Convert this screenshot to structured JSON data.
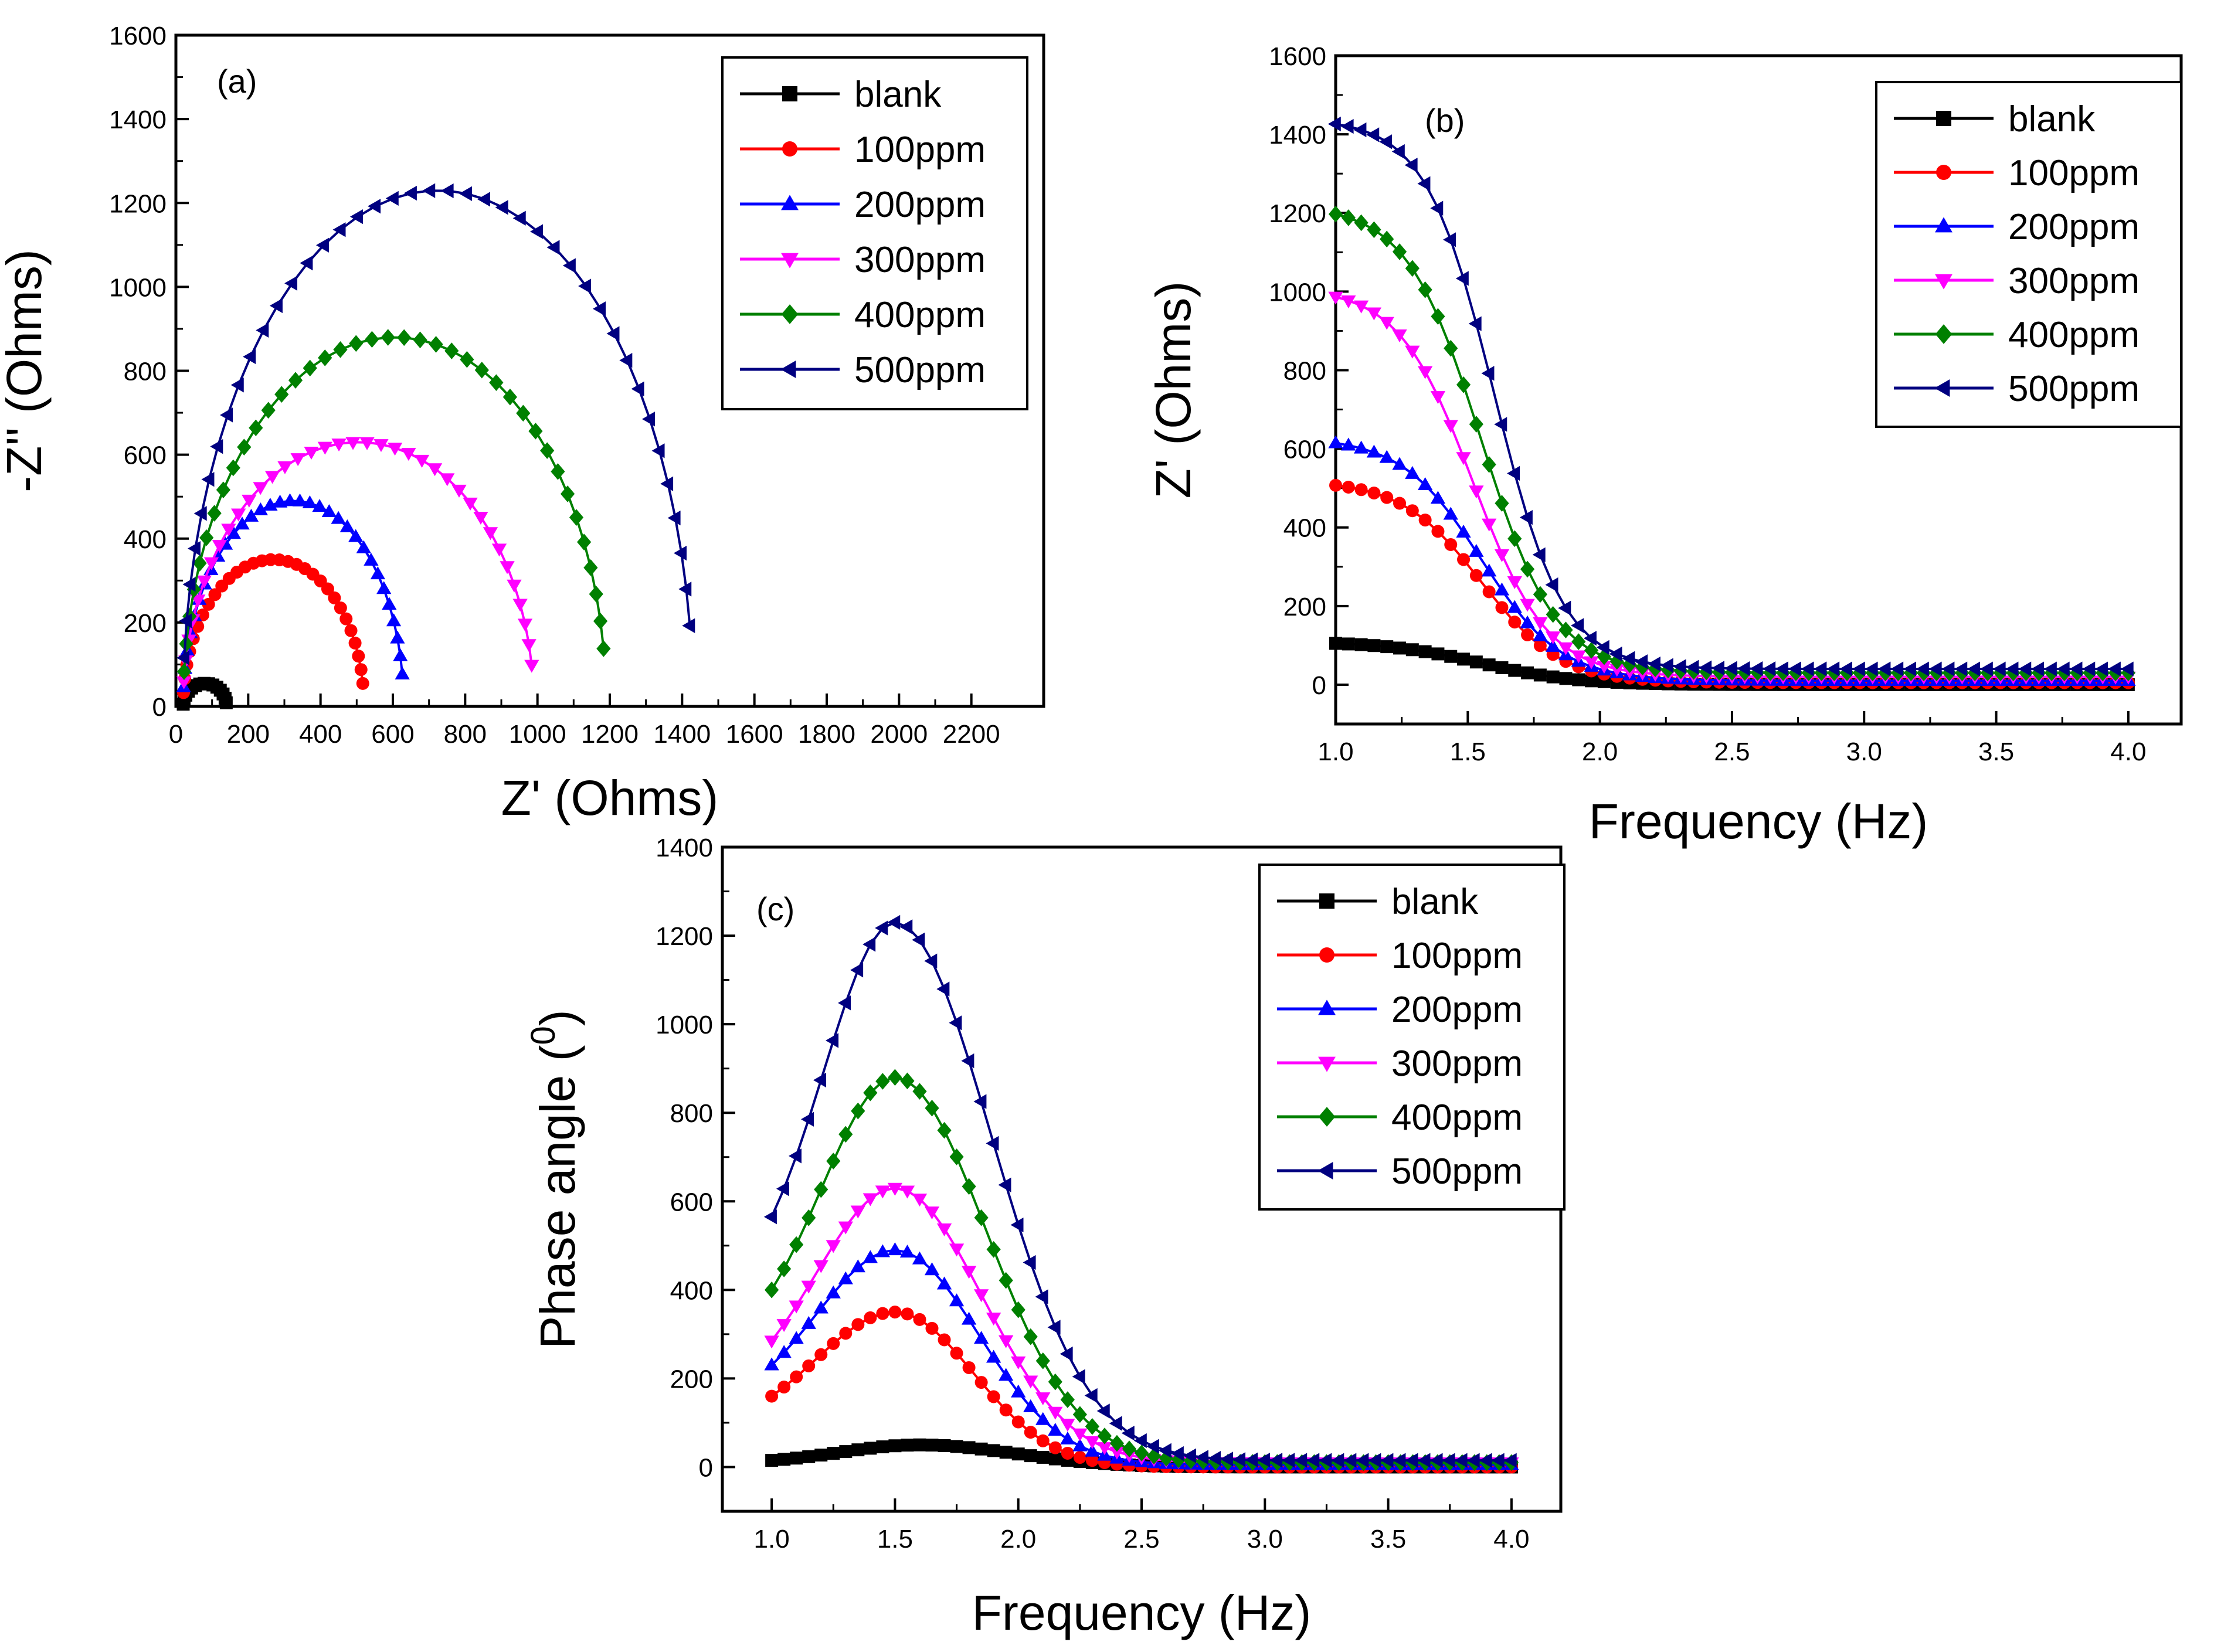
{
  "figure": {
    "series_styles": [
      {
        "name": "blank",
        "color": "#000000",
        "marker": "square"
      },
      {
        "name": "100ppm",
        "color": "#ff0000",
        "marker": "circle"
      },
      {
        "name": "200ppm",
        "color": "#0000ff",
        "marker": "triangle-up"
      },
      {
        "name": "300ppm",
        "color": "#ff00ff",
        "marker": "triangle-down"
      },
      {
        "name": "400ppm",
        "color": "#008000",
        "marker": "diamond"
      },
      {
        "name": "500ppm",
        "color": "#000080",
        "marker": "triangle-left"
      }
    ]
  },
  "chart_data": [
    {
      "id": "a",
      "type": "scatter",
      "panel_label": "(a)",
      "xlabel": "Z' (Ohms)",
      "ylabel": "-Z'' (Ohms)",
      "xlim": [
        0,
        2400
      ],
      "ylim": [
        0,
        1600
      ],
      "xticks": [
        0,
        200,
        400,
        600,
        800,
        1000,
        1200,
        1400,
        1600,
        1800,
        2000,
        2200
      ],
      "yticks": [
        0,
        200,
        400,
        600,
        800,
        1000,
        1200,
        1400,
        1600
      ],
      "legend": "top-right",
      "grid": false,
      "series": [
        {
          "name": "blank",
          "arc": {
            "x0": 20,
            "x1": 140,
            "peak": 55,
            "points": 14
          }
        },
        {
          "name": "100ppm",
          "arc": {
            "x0": 20,
            "x1": 520,
            "peak": 350,
            "points": 30
          }
        },
        {
          "name": "200ppm",
          "arc": {
            "x0": 20,
            "x1": 630,
            "peak": 490,
            "points": 32
          }
        },
        {
          "name": "300ppm",
          "arc": {
            "x0": 20,
            "x1": 990,
            "peak": 630,
            "points": 36
          }
        },
        {
          "name": "400ppm",
          "arc": {
            "x0": 20,
            "x1": 1190,
            "peak": 880,
            "points": 38
          }
        },
        {
          "name": "500ppm",
          "arc": {
            "x0": 20,
            "x1": 1430,
            "peak": 1230,
            "points": 40
          }
        }
      ]
    },
    {
      "id": "b",
      "type": "scatter",
      "panel_label": "(b)",
      "xlabel": "Frequency (Hz)",
      "ylabel": "Z' (Ohms)",
      "xlim": [
        1.0,
        4.2
      ],
      "ylim": [
        -100,
        1600
      ],
      "xticks": [
        1.0,
        1.5,
        2.0,
        2.5,
        3.0,
        3.5,
        4.0
      ],
      "yticks": [
        0,
        200,
        400,
        600,
        800,
        1000,
        1200,
        1400,
        1600
      ],
      "legend": "top-right",
      "grid": false,
      "series": [
        {
          "name": "blank",
          "sigmoid": {
            "low": 0,
            "high": 110,
            "mid": 1.55,
            "width": 0.18
          }
        },
        {
          "name": "100ppm",
          "sigmoid": {
            "low": 5,
            "high": 520,
            "mid": 1.55,
            "width": 0.15
          }
        },
        {
          "name": "200ppm",
          "sigmoid": {
            "low": 10,
            "high": 630,
            "mid": 1.55,
            "width": 0.15
          }
        },
        {
          "name": "300ppm",
          "sigmoid": {
            "low": 20,
            "high": 1010,
            "mid": 1.52,
            "width": 0.14
          }
        },
        {
          "name": "400ppm",
          "sigmoid": {
            "low": 30,
            "high": 1220,
            "mid": 1.55,
            "width": 0.14
          }
        },
        {
          "name": "500ppm",
          "sigmoid": {
            "low": 40,
            "high": 1440,
            "mid": 1.6,
            "width": 0.13
          }
        }
      ]
    },
    {
      "id": "c",
      "type": "scatter",
      "panel_label": "(c)",
      "xlabel": "Frequency (Hz)",
      "ylabel": "Phase angle (",
      "ylabel_sup": "0",
      "ylabel_end": ")",
      "xlim": [
        0.8,
        4.2
      ],
      "ylim": [
        -100,
        1400
      ],
      "xticks": [
        1.0,
        1.5,
        2.0,
        2.5,
        3.0,
        3.5,
        4.0
      ],
      "yticks": [
        0,
        200,
        400,
        600,
        800,
        1000,
        1200,
        1400
      ],
      "legend": "top-right",
      "grid": false,
      "series": [
        {
          "name": "blank",
          "peak": {
            "start": 15,
            "max": 50,
            "at": 1.6,
            "w_left": 0.45,
            "w_right": 0.55,
            "tail": 0
          }
        },
        {
          "name": "100ppm",
          "peak": {
            "start": 160,
            "max": 350,
            "at": 1.5,
            "w_left": 0.45,
            "w_right": 0.45,
            "tail": 0
          }
        },
        {
          "name": "200ppm",
          "peak": {
            "start": 230,
            "max": 490,
            "at": 1.5,
            "w_left": 0.45,
            "w_right": 0.48,
            "tail": 5
          }
        },
        {
          "name": "300ppm",
          "peak": {
            "start": 285,
            "max": 630,
            "at": 1.5,
            "w_left": 0.45,
            "w_right": 0.5,
            "tail": 10
          }
        },
        {
          "name": "400ppm",
          "peak": {
            "start": 400,
            "max": 880,
            "at": 1.5,
            "w_left": 0.42,
            "w_right": 0.52,
            "tail": 10
          }
        },
        {
          "name": "500ppm",
          "peak": {
            "start": 565,
            "max": 1230,
            "at": 1.5,
            "w_left": 0.41,
            "w_right": 0.55,
            "tail": 15
          }
        }
      ]
    }
  ]
}
